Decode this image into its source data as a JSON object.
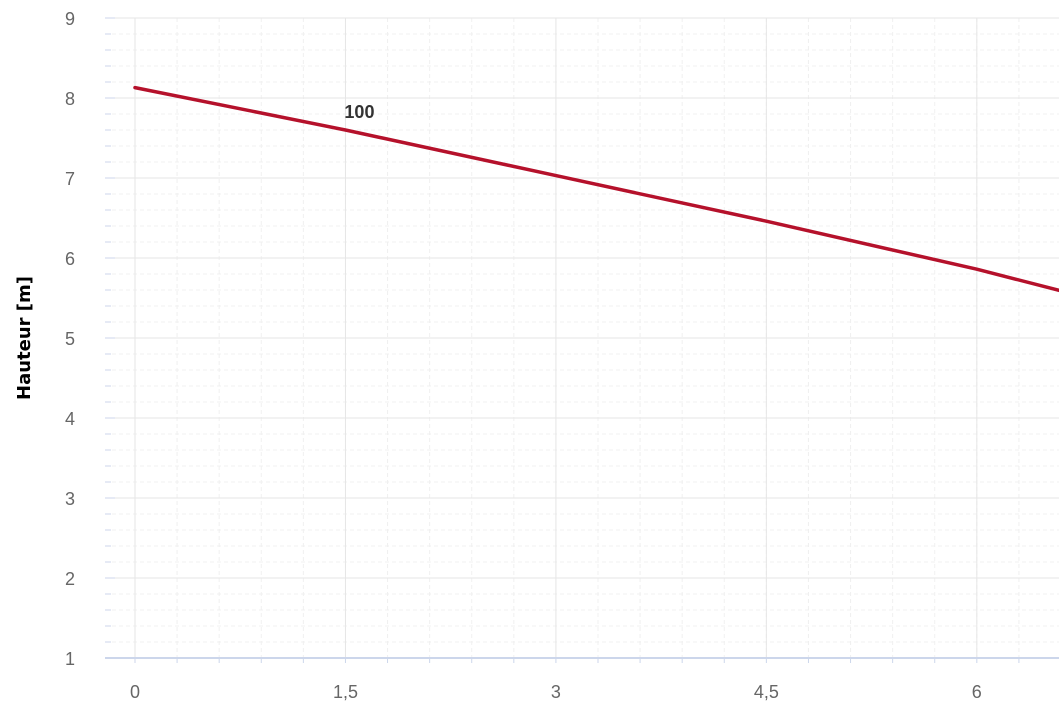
{
  "chart_data": {
    "type": "line",
    "title": "",
    "xlabel": "",
    "ylabel": "Hauteur [m]",
    "xlim": [
      0,
      6.6
    ],
    "ylim": [
      1,
      9
    ],
    "x_ticks": [
      0,
      1.5,
      3,
      4.5,
      6
    ],
    "x_tick_labels": [
      "0",
      "1,5",
      "3",
      "4,5",
      "6"
    ],
    "y_ticks": [
      1,
      2,
      3,
      4,
      5,
      6,
      7,
      8,
      9
    ],
    "y_tick_labels": [
      "1",
      "2",
      "3",
      "4",
      "5",
      "6",
      "7",
      "8",
      "9"
    ],
    "grid": true,
    "series": [
      {
        "name": "100",
        "color": "#b5112b",
        "x": [
          0,
          1.5,
          3,
          4.5,
          6,
          6.6
        ],
        "y": [
          8.13,
          7.6,
          7.03,
          6.46,
          5.86,
          5.59
        ]
      }
    ],
    "annotations": [
      {
        "text": "100",
        "x": 1.5,
        "y": 7.6
      }
    ]
  },
  "colors": {
    "grid_major": "#e6e6e6",
    "grid_minor": "#f0f0f0",
    "axis_line": "#ccd6eb",
    "tick_mark": "#ccd6eb",
    "tick_label": "#666666",
    "axis_title": "#000000"
  }
}
